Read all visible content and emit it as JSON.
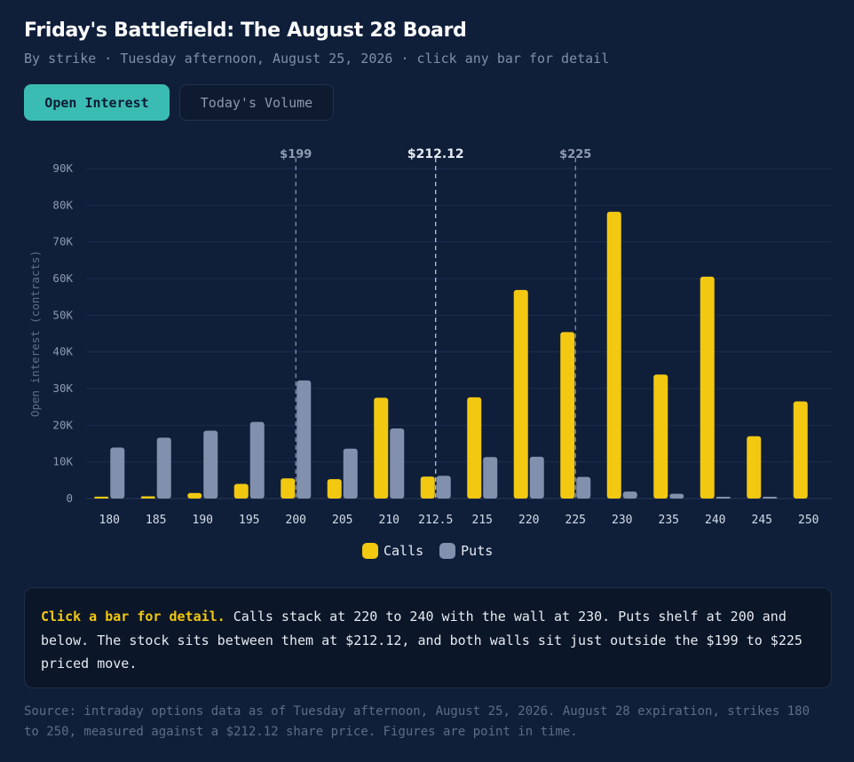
{
  "header": {
    "title": "Friday's Battlefield: The August 28 Board",
    "subtitle": "By strike · Tuesday afternoon, August 25, 2026 · click any bar for detail"
  },
  "tabs": [
    {
      "label": "Open Interest",
      "active": true
    },
    {
      "label": "Today's Volume",
      "active": false
    }
  ],
  "colors": {
    "calls": "#f2c811",
    "puts": "#8190ad",
    "accent": "#3bbcb3",
    "background": "#0f1f3a"
  },
  "chart_data": {
    "type": "bar",
    "ylabel": "Open interest (contracts)",
    "xlabel": "",
    "ylim": [
      0,
      90000
    ],
    "yticks": [
      0,
      10000,
      20000,
      30000,
      40000,
      50000,
      60000,
      70000,
      80000,
      90000
    ],
    "ytick_labels": [
      "0",
      "10K",
      "20K",
      "30K",
      "40K",
      "50K",
      "60K",
      "70K",
      "80K",
      "90K"
    ],
    "categories": [
      "180",
      "185",
      "190",
      "195",
      "200",
      "205",
      "210",
      "212.5",
      "215",
      "220",
      "225",
      "230",
      "235",
      "240",
      "245",
      "250"
    ],
    "series": [
      {
        "name": "Calls",
        "values": [
          500,
          600,
          1500,
          4000,
          5500,
          5300,
          27500,
          6000,
          27600,
          56900,
          45400,
          78200,
          33800,
          60500,
          17000,
          26500
        ]
      },
      {
        "name": "Puts",
        "values": [
          13900,
          16600,
          18500,
          20900,
          32200,
          13600,
          19100,
          6200,
          11300,
          11400,
          5900,
          1900,
          1300,
          400,
          100,
          0
        ]
      }
    ],
    "reference_lines": [
      {
        "label": "$199",
        "x": 200,
        "emphasis": false
      },
      {
        "label": "$212.12",
        "x": 212.5,
        "emphasis": true
      },
      {
        "label": "$225",
        "x": 225,
        "emphasis": false
      }
    ],
    "grid": true,
    "legend": "bottom-center"
  },
  "legend": {
    "calls": "Calls",
    "puts": "Puts"
  },
  "note": {
    "heading": "Click a bar for detail.",
    "text": " Calls stack at 220 to 240 with the wall at 230. Puts shelf at 200 and below. The stock sits between them at $212.12, and both walls sit just outside the $199 to $225 priced move."
  },
  "source": "Source: intraday options data as of Tuesday afternoon, August 25, 2026. August 28 expiration, strikes 180 to 250, measured against a $212.12 share price. Figures are point in time."
}
